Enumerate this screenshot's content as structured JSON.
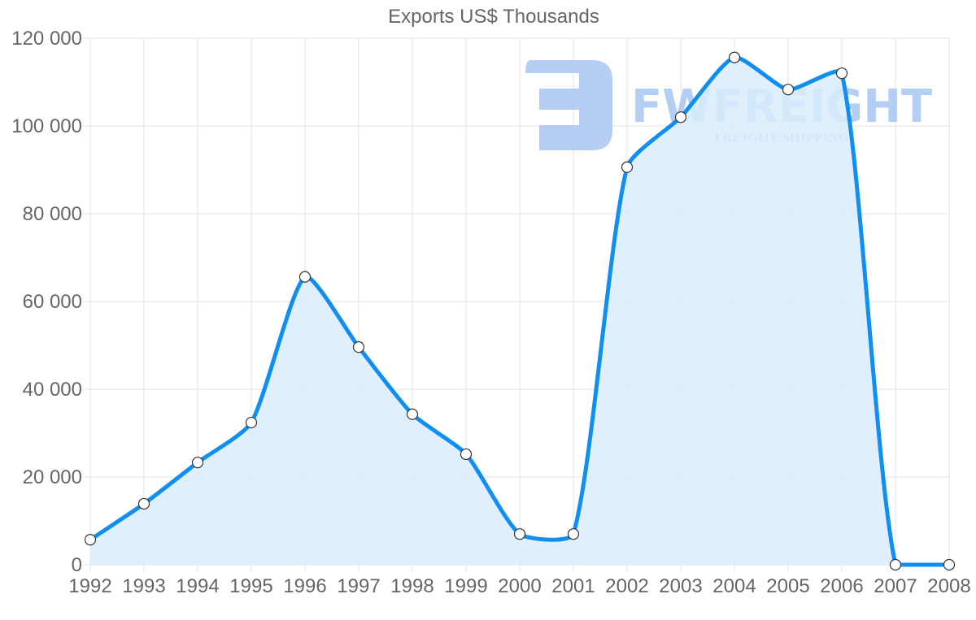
{
  "chart_data": {
    "type": "area",
    "title": "Exports US$ Thousands",
    "xlabel": "",
    "ylabel": "",
    "categories": [
      "1992",
      "1993",
      "1994",
      "1995",
      "1996",
      "1997",
      "1998",
      "1999",
      "2000",
      "2001",
      "2002",
      "2003",
      "2004",
      "2005",
      "2006",
      "2007",
      "2008"
    ],
    "series": [
      {
        "name": "Exports US$ Thousands",
        "values": [
          5700,
          13900,
          23300,
          32400,
          65600,
          49600,
          34300,
          25200,
          7000,
          7000,
          90600,
          102000,
          115600,
          108300,
          112000,
          0,
          0
        ]
      }
    ],
    "ylim": [
      0,
      120000
    ],
    "yticks": [
      0,
      20000,
      40000,
      60000,
      80000,
      100000,
      120000
    ],
    "ytick_labels": [
      "0",
      "20 000",
      "40 000",
      "60 000",
      "80 000",
      "100 000",
      "120 000"
    ],
    "grid": true,
    "legend": "none",
    "colors": {
      "line": "#118ff0",
      "fill": "#d9ecfc",
      "point_fill": "#ffffff",
      "point_stroke": "#333333",
      "grid": "#e3e3e3",
      "text": "#666666"
    }
  },
  "watermark": {
    "brand": "FWFREIGHT",
    "tagline": "FREIGHT SHIPPING",
    "color": "#a9c6f2"
  }
}
